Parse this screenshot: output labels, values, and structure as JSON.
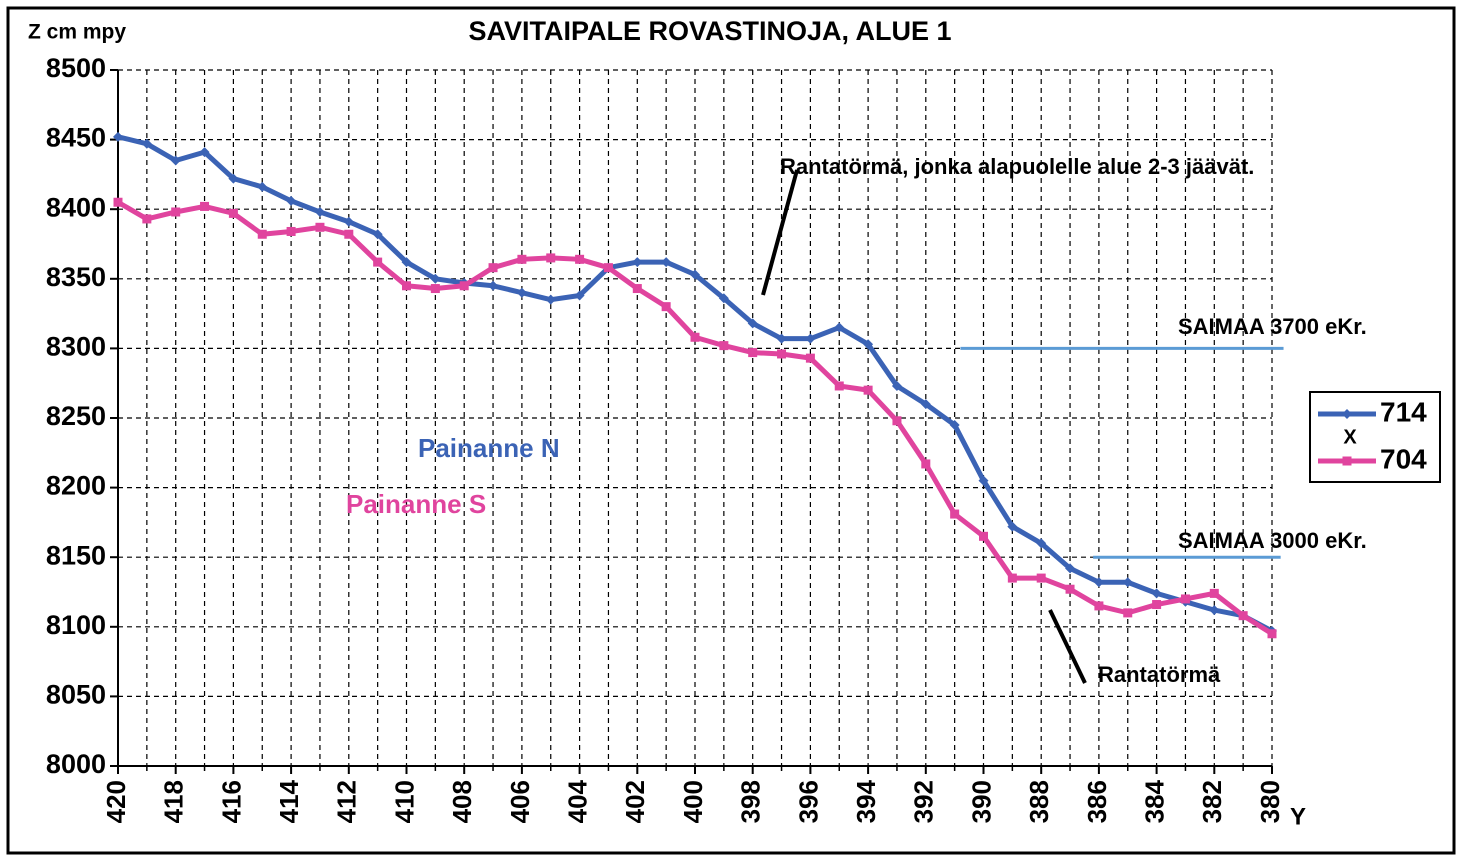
{
  "chart_data": {
    "type": "line",
    "title": "SAVITAIPALE ROVASTINOJA, ALUE 1",
    "y_label": "Z cm mpy",
    "x_label": "Y",
    "x": [
      420,
      419,
      418,
      417,
      416,
      415,
      414,
      413,
      412,
      411,
      410,
      409,
      408,
      407,
      406,
      405,
      404,
      403,
      402,
      401,
      400,
      399,
      398,
      397,
      396,
      395,
      394,
      393,
      392,
      391,
      390,
      389,
      388,
      387,
      386,
      385,
      384,
      383,
      382,
      381,
      380
    ],
    "series": [
      {
        "name": "714",
        "color": "#3b63b5",
        "marker": "diamond",
        "values": [
          8452,
          8447,
          8435,
          8441,
          8422,
          8416,
          8406,
          8398,
          8391,
          8382,
          8362,
          8350,
          8347,
          8345,
          8340,
          8335,
          8338,
          8358,
          8362,
          8362,
          8353,
          8336,
          8318,
          8307,
          8307,
          8315,
          8303,
          8273,
          8260,
          8245,
          8205,
          8172,
          8160,
          8142,
          8132,
          8132,
          8124,
          8118,
          8112,
          8108,
          8097
        ]
      },
      {
        "name": "704",
        "color": "#e0449e",
        "marker": "square",
        "values": [
          8405,
          8393,
          8398,
          8402,
          8397,
          8382,
          8384,
          8387,
          8382,
          8362,
          8345,
          8343,
          8345,
          8358,
          8364,
          8365,
          8364,
          8358,
          8343,
          8330,
          8308,
          8302,
          8297,
          8296,
          8293,
          8273,
          8270,
          8248,
          8217,
          8181,
          8165,
          8135,
          8135,
          8127,
          8115,
          8110,
          8116,
          8120,
          8124,
          8108,
          8095
        ]
      }
    ],
    "xlim": [
      420,
      380
    ],
    "xticks": [
      420,
      418,
      416,
      414,
      412,
      410,
      408,
      406,
      404,
      402,
      400,
      398,
      396,
      394,
      392,
      390,
      388,
      386,
      384,
      382,
      380
    ],
    "minor_xticks": [
      419,
      417,
      415,
      413,
      411,
      409,
      407,
      405,
      403,
      401,
      399,
      397,
      395,
      393,
      391,
      389,
      387,
      385,
      383,
      381
    ],
    "ylim": [
      8000,
      8500
    ],
    "yticks": [
      8000,
      8050,
      8100,
      8150,
      8200,
      8250,
      8300,
      8350,
      8400,
      8450,
      8500
    ],
    "grid": true,
    "legend": "right",
    "legend_title": "X",
    "reference_lines": [
      {
        "label": "SAIMAA 3700 eKr.",
        "y": 8300,
        "x": [
          390.8,
          379.6
        ],
        "color": "#5b9bd5"
      },
      {
        "label": "SAIMAA 3000 eKr.",
        "y": 8150,
        "x": [
          386.2,
          379.7
        ],
        "color": "#5b9bd5"
      }
    ],
    "annotations": [
      {
        "text": "Rantatörmä, jonka alapuolelle alue 2-3 jäävät."
      },
      {
        "text": "Painanne N",
        "color": "#3b63b5"
      },
      {
        "text": "Painanne S",
        "color": "#e0449e"
      },
      {
        "text": "Rantatörmä"
      }
    ]
  }
}
